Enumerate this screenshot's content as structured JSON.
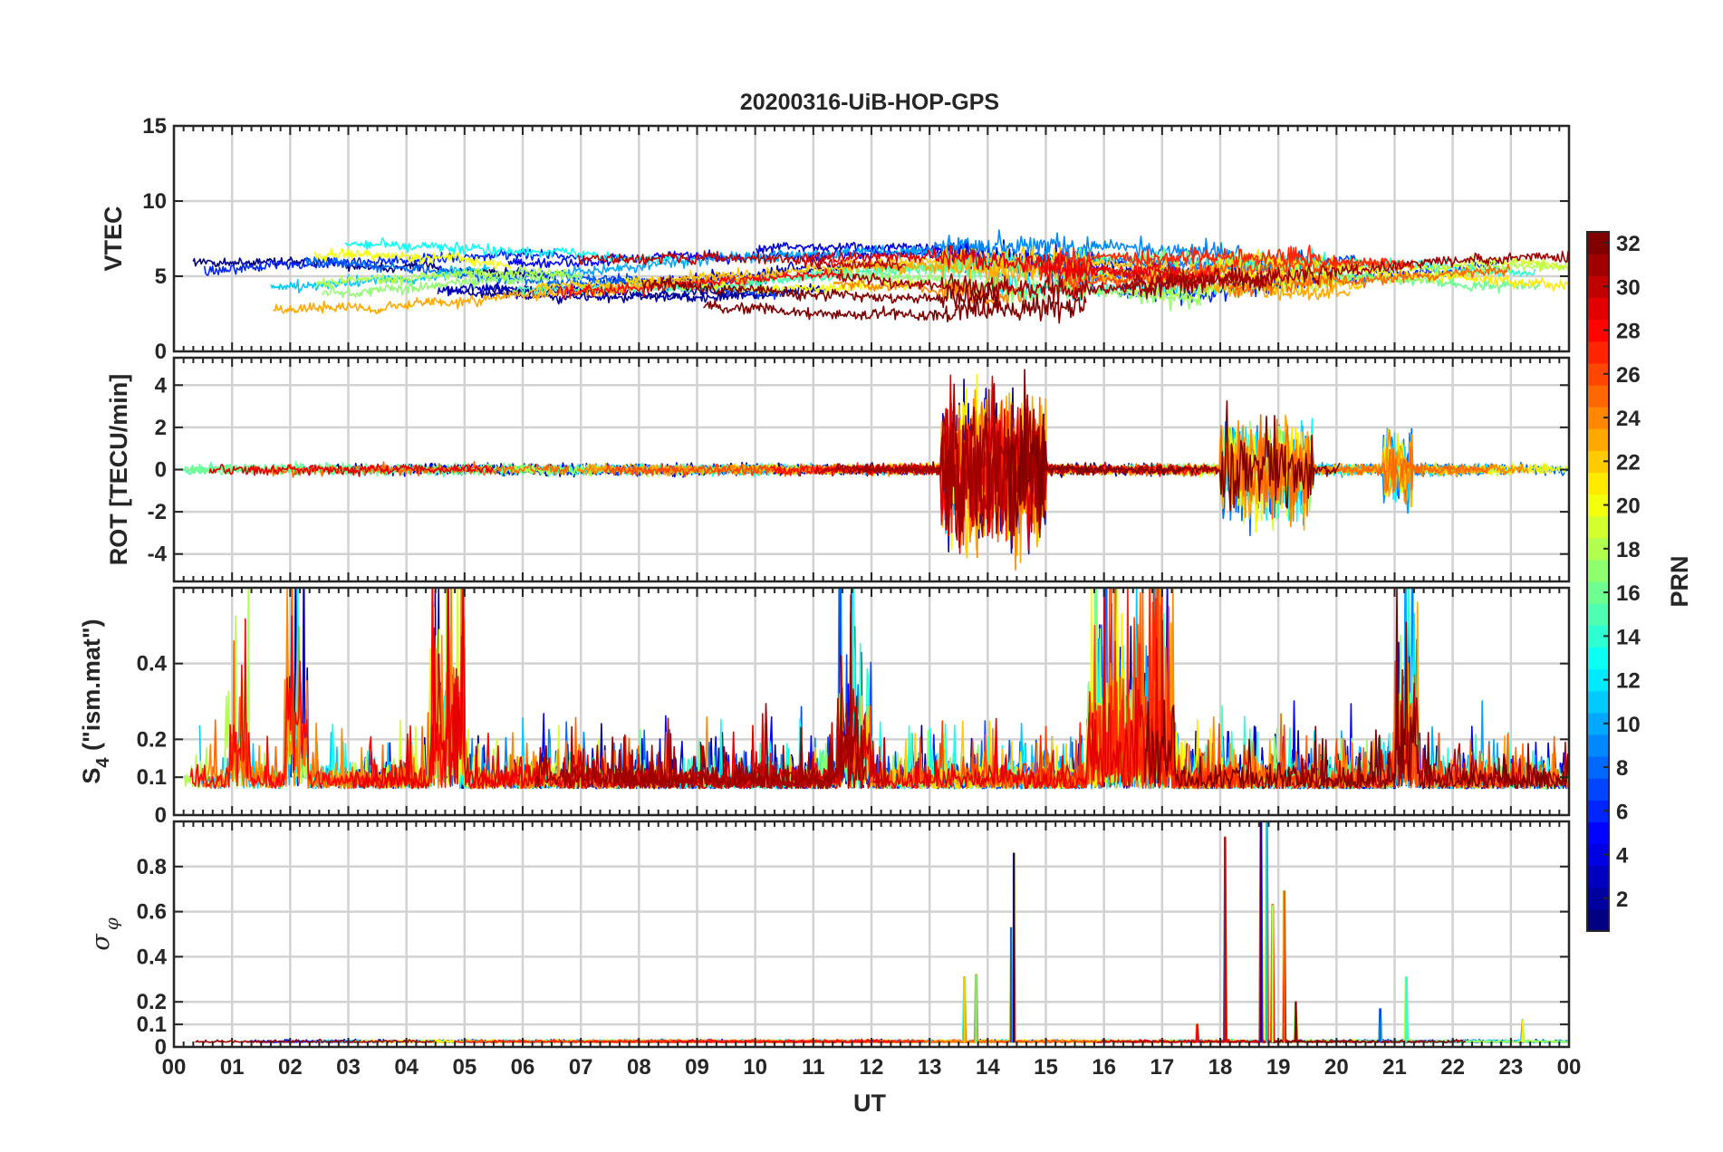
{
  "chart_data": {
    "type": "line",
    "title": "20200316-UiB-HOP-GPS",
    "xlabel": "UT",
    "x_tick_labels": [
      "00",
      "01",
      "02",
      "03",
      "04",
      "05",
      "06",
      "07",
      "08",
      "09",
      "10",
      "11",
      "12",
      "13",
      "14",
      "15",
      "16",
      "17",
      "18",
      "19",
      "20",
      "21",
      "22",
      "23",
      "00"
    ],
    "xlim_hours": [
      0,
      24
    ],
    "panels": [
      {
        "name": "vtec",
        "ylabel": "VTEC",
        "ylim": [
          0,
          15
        ],
        "yticks": [
          0,
          5,
          10,
          15
        ],
        "ytick_labels": [
          "0",
          "5",
          "10",
          "15"
        ],
        "baseline": 4.8,
        "noise": 1.0,
        "active_windows": [
          [
            13.2,
            15.8,
            2.5
          ],
          [
            16.5,
            20.0,
            1.8
          ]
        ],
        "approx_range": [
          1,
          11
        ]
      },
      {
        "name": "rot",
        "ylabel": "ROT [TECU/min]",
        "ylim": [
          -5.3,
          5.3
        ],
        "yticks": [
          -4,
          -2,
          0,
          2,
          4
        ],
        "ytick_labels": [
          "-4",
          "-2",
          "0",
          "2",
          "4"
        ],
        "baseline": 0,
        "noise": 0.25,
        "active_windows": [
          [
            13.2,
            15.0,
            3.5
          ],
          [
            18.0,
            19.6,
            2.2
          ],
          [
            20.8,
            21.3,
            1.6
          ]
        ],
        "approx_range": [
          -5.3,
          5.3
        ]
      },
      {
        "name": "s4",
        "ylabel": "S4 (\"ism.mat\")",
        "ylabel_main": "S",
        "ylabel_sub": "4",
        "ylabel_rest": " (\"ism.mat\")",
        "ylim": [
          0,
          0.6
        ],
        "yticks": [
          0,
          0.1,
          0.2,
          0.4
        ],
        "ytick_labels": [
          "0",
          "0.1",
          "0.2",
          "0.4"
        ],
        "baseline": 0.07,
        "noise": 0.08,
        "active_windows": [
          [
            0.9,
            1.3,
            0.25
          ],
          [
            1.9,
            2.3,
            0.4
          ],
          [
            4.4,
            5.0,
            0.45
          ],
          [
            11.4,
            12.0,
            0.35
          ],
          [
            15.7,
            17.2,
            0.35
          ],
          [
            21.0,
            21.4,
            0.4
          ]
        ],
        "approx_range": [
          0.05,
          0.6
        ]
      },
      {
        "name": "sigma-phi",
        "ylabel": "σφ",
        "ylabel_main": "σ",
        "ylabel_sub": "φ",
        "ylim": [
          0,
          1.0
        ],
        "yticks": [
          0,
          0.1,
          0.2,
          0.4,
          0.6,
          0.8
        ],
        "ytick_labels": [
          "0",
          "0.1",
          "0.2",
          "0.4",
          "0.6",
          "0.8"
        ],
        "baseline": 0.02,
        "noise": 0.01,
        "spikes": [
          {
            "x": 14.45,
            "y": 0.86
          },
          {
            "x": 14.4,
            "y": 0.53
          },
          {
            "x": 13.8,
            "y": 0.32
          },
          {
            "x": 13.6,
            "y": 0.31
          },
          {
            "x": 18.08,
            "y": 0.93
          },
          {
            "x": 18.7,
            "y": 1.0
          },
          {
            "x": 18.8,
            "y": 1.0
          },
          {
            "x": 18.9,
            "y": 0.63
          },
          {
            "x": 19.1,
            "y": 0.69
          },
          {
            "x": 19.3,
            "y": 0.2
          },
          {
            "x": 20.75,
            "y": 0.17
          },
          {
            "x": 21.2,
            "y": 0.31
          },
          {
            "x": 23.2,
            "y": 0.12
          },
          {
            "x": 17.6,
            "y": 0.1
          }
        ],
        "approx_range": [
          0,
          1.0
        ]
      }
    ],
    "colorbar": {
      "label": "PRN",
      "colormap": "jet",
      "range": [
        1,
        32
      ],
      "levels": 32,
      "tick_values": [
        2,
        4,
        6,
        8,
        10,
        12,
        14,
        16,
        18,
        20,
        22,
        24,
        26,
        28,
        30,
        32
      ],
      "tick_labels": [
        "2",
        "4",
        "6",
        "8",
        "10",
        "12",
        "14",
        "16",
        "18",
        "20",
        "22",
        "24",
        "26",
        "28",
        "30",
        "32"
      ]
    },
    "series_note": "One colored trace per GPS satellite PRN (1-32), colored by PRN via jet colormap; traces synthesized from the described baseline/activity values.",
    "grid": true,
    "legend": "colorbar right"
  }
}
